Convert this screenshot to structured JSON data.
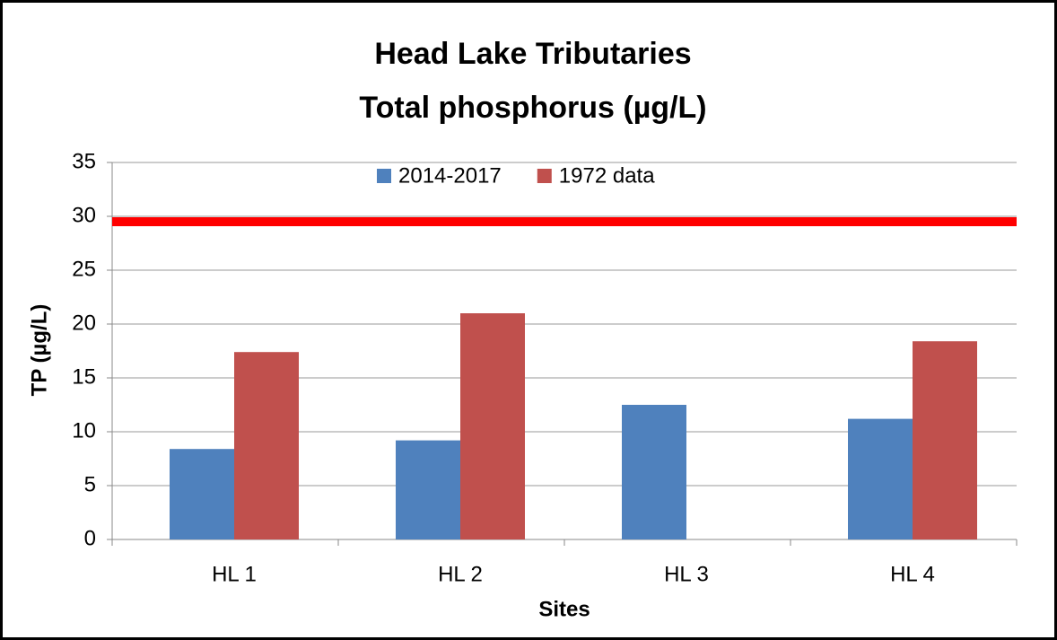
{
  "chart_data": {
    "type": "bar",
    "title": [
      "Head Lake Tributaries",
      "Total phosphorus  (µg/L)"
    ],
    "xlabel": "Sites",
    "ylabel": "TP (µg/L)",
    "categories": [
      "HL 1",
      "HL 2",
      "HL 3",
      "HL 4"
    ],
    "series": [
      {
        "name": "2014-2017",
        "color": "#4f81bd",
        "values": [
          8.4,
          9.2,
          12.5,
          11.2
        ]
      },
      {
        "name": "1972 data",
        "color": "#c0504d",
        "values": [
          17.4,
          21.0,
          null,
          18.4
        ]
      }
    ],
    "reference_line": {
      "value": 29.5,
      "color": "#ff0000"
    },
    "ylim": [
      0,
      35
    ],
    "yticks": [
      0,
      5,
      10,
      15,
      20,
      25,
      30,
      35
    ],
    "grid": true,
    "legend": "top"
  }
}
